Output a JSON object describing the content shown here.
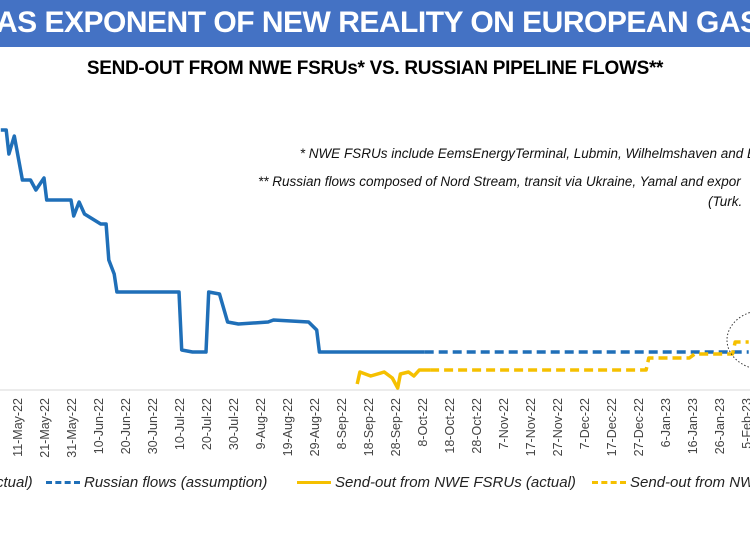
{
  "header": {
    "title": "AS EXPONENT OF NEW REALITY ON EUROPEAN GAS M"
  },
  "colors": {
    "banner": "#4472C4",
    "russian": "#1F6FB8",
    "fsru": "#F5C000"
  },
  "chart_data": {
    "type": "line",
    "title": "SEND-OUT FROM NWE FSRUs* VS. RUSSIAN PIPELINE FLOWS**",
    "xlabel": "",
    "ylabel": "",
    "y_axis_shown": false,
    "grid": false,
    "x_ticks": [
      "11-May-22",
      "21-May-22",
      "31-May-22",
      "10-Jun-22",
      "20-Jun-22",
      "30-Jun-22",
      "10-Jul-22",
      "20-Jul-22",
      "30-Jul-22",
      "9-Aug-22",
      "19-Aug-22",
      "29-Aug-22",
      "8-Sep-22",
      "18-Sep-22",
      "28-Sep-22",
      "8-Oct-22",
      "18-Oct-22",
      "28-Oct-22",
      "7-Nov-22",
      "17-Nov-22",
      "27-Nov-22",
      "7-Dec-22",
      "17-Dec-22",
      "27-Dec-22",
      "6-Jan-23",
      "16-Jan-23",
      "26-Jan-23",
      "5-Feb-23"
    ],
    "series": [
      {
        "name": "ctual)",
        "style": "solid",
        "color": "#1F6FB8",
        "x": [
          "2022-05-05",
          "2022-05-07",
          "2022-05-08",
          "2022-05-10",
          "2022-05-13",
          "2022-05-16",
          "2022-05-18",
          "2022-05-21",
          "2022-05-22",
          "2022-05-25",
          "2022-05-31",
          "2022-06-01",
          "2022-06-03",
          "2022-06-05",
          "2022-06-11",
          "2022-06-13",
          "2022-06-14",
          "2022-06-16",
          "2022-06-17",
          "2022-06-21",
          "2022-07-10",
          "2022-07-11",
          "2022-07-15",
          "2022-07-20",
          "2022-07-21",
          "2022-07-25",
          "2022-07-28",
          "2022-08-01",
          "2022-08-12",
          "2022-08-14",
          "2022-08-27",
          "2022-08-30",
          "2022-08-31",
          "2022-09-07",
          "2022-10-09"
        ],
        "y": [
          130,
          130,
          118,
          127,
          105,
          105,
          100,
          106,
          95,
          95,
          95,
          87,
          94,
          88,
          83,
          83,
          65,
          58,
          49,
          49,
          49,
          20,
          19,
          19,
          49,
          48,
          34,
          33,
          34,
          35,
          34,
          30,
          19,
          19,
          19
        ]
      },
      {
        "name": "Russian flows (assumption)",
        "style": "dashed",
        "color": "#1F6FB8",
        "x": [
          "2022-10-09",
          "2023-02-06"
        ],
        "y": [
          19,
          19
        ]
      },
      {
        "name": "Send-out from NWE FSRUs (actual)",
        "style": "solid",
        "color": "#F5C000",
        "x": [
          "2022-09-14",
          "2022-09-15",
          "2022-09-19",
          "2022-09-24",
          "2022-09-27",
          "2022-09-29",
          "2022-09-30",
          "2022-10-03",
          "2022-10-05",
          "2022-10-07",
          "2022-10-11"
        ],
        "y": [
          3,
          9,
          7,
          9,
          6,
          1,
          8,
          9,
          7,
          10,
          10
        ]
      },
      {
        "name": "Send-out from NW",
        "style": "dashed",
        "color": "#F5C000",
        "x": [
          "2022-10-11",
          "2022-12-30",
          "2022-12-31",
          "2023-01-15",
          "2023-01-17",
          "2023-01-31",
          "2023-02-01",
          "2023-02-06"
        ],
        "y": [
          10,
          10,
          16,
          16,
          18,
          18,
          24,
          24
        ]
      }
    ]
  },
  "notes": {
    "line1": "* NWE FSRUs include EemsEnergyTerminal, Lubmin, Wilhelmshaven and B",
    "line2": "** Russian flows composed of Nord Stream, transit via Ukraine, Yamal and expor",
    "line3": "(Turk."
  }
}
